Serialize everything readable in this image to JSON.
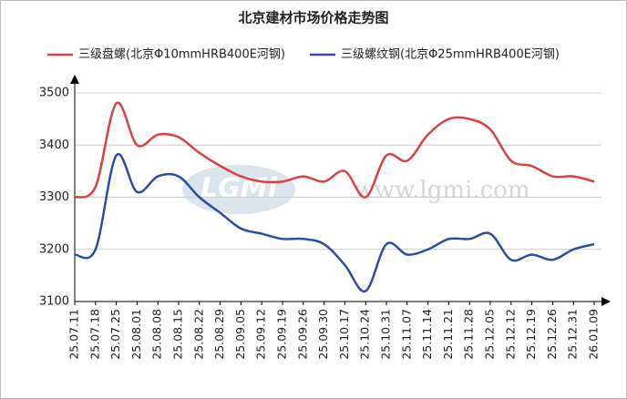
{
  "chart_data": {
    "type": "line",
    "title": "北京建材市场价格走势图",
    "watermark": "www.lgmi.com",
    "watermark_logo": "LGMi",
    "categories": [
      "25.07.11",
      "25.07.18",
      "25.07.25",
      "25.08.01",
      "25.08.08",
      "25.08.15",
      "25.08.22",
      "25.08.29",
      "25.09.05",
      "25.09.12",
      "25.09.19",
      "25.09.26",
      "25.09.30",
      "25.10.17",
      "25.10.24",
      "25.10.31",
      "25.11.07",
      "25.11.14",
      "25.11.21",
      "25.11.28",
      "25.12.05",
      "25.12.12",
      "25.12.19",
      "25.12.26",
      "25.12.31",
      "26.01.09"
    ],
    "series": [
      {
        "name": "三级盘螺(北京Φ10mmHRB400E河钢)",
        "color": "#d9413f",
        "values": [
          3300,
          3320,
          3480,
          3400,
          3420,
          3415,
          3385,
          3360,
          3340,
          3330,
          3330,
          3340,
          3330,
          3350,
          3300,
          3380,
          3370,
          3420,
          3450,
          3450,
          3430,
          3370,
          3360,
          3340,
          3340,
          3330
        ]
      },
      {
        "name": "三级螺纹钢(北京Φ25mmHRB400E河钢)",
        "color": "#2a4ea0",
        "values": [
          3190,
          3200,
          3380,
          3310,
          3340,
          3340,
          3300,
          3270,
          3240,
          3230,
          3220,
          3220,
          3210,
          3170,
          3120,
          3210,
          3190,
          3200,
          3220,
          3220,
          3230,
          3180,
          3190,
          3180,
          3200,
          3210
        ]
      }
    ],
    "ylim": [
      3100,
      3500
    ],
    "yticks": [
      3100,
      3200,
      3300,
      3400,
      3500
    ],
    "grid": true
  }
}
